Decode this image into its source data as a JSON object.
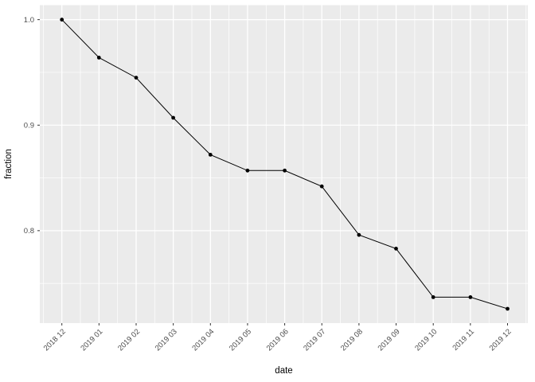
{
  "figure": {
    "background": "#FFFFFF",
    "panel_background": "#EBEBEB",
    "grid_color": "#FFFFFF"
  },
  "chart_data": {
    "type": "line",
    "title": "",
    "xlabel": "date",
    "ylabel": "fraction",
    "categories": [
      "2018 12",
      "2019 01",
      "2019 02",
      "2019 03",
      "2019 04",
      "2019 05",
      "2019 06",
      "2019 07",
      "2019 08",
      "2019 09",
      "2019 10",
      "2019 11",
      "2019 12"
    ],
    "values": [
      1.0,
      0.964,
      0.945,
      0.907,
      0.872,
      0.857,
      0.857,
      0.842,
      0.796,
      0.783,
      0.737,
      0.737,
      0.726
    ],
    "ylim": [
      0.7124,
      1.0137
    ],
    "y_ticks": [
      1.0,
      0.9,
      0.8
    ],
    "y_tick_labels": [
      "1.0",
      "0.9",
      "0.8"
    ],
    "y_minor_ticks": [
      0.95,
      0.85,
      0.75
    ],
    "x_tick_rotation_deg": 45,
    "grid": "major+minor",
    "legend": "none",
    "marker": "filled-circle",
    "line_color": "#000000",
    "point_color": "#000000",
    "tick_mark_color": "#333333",
    "tick_label_color": "#4D4D4D",
    "axis_title_color": "#000000"
  }
}
